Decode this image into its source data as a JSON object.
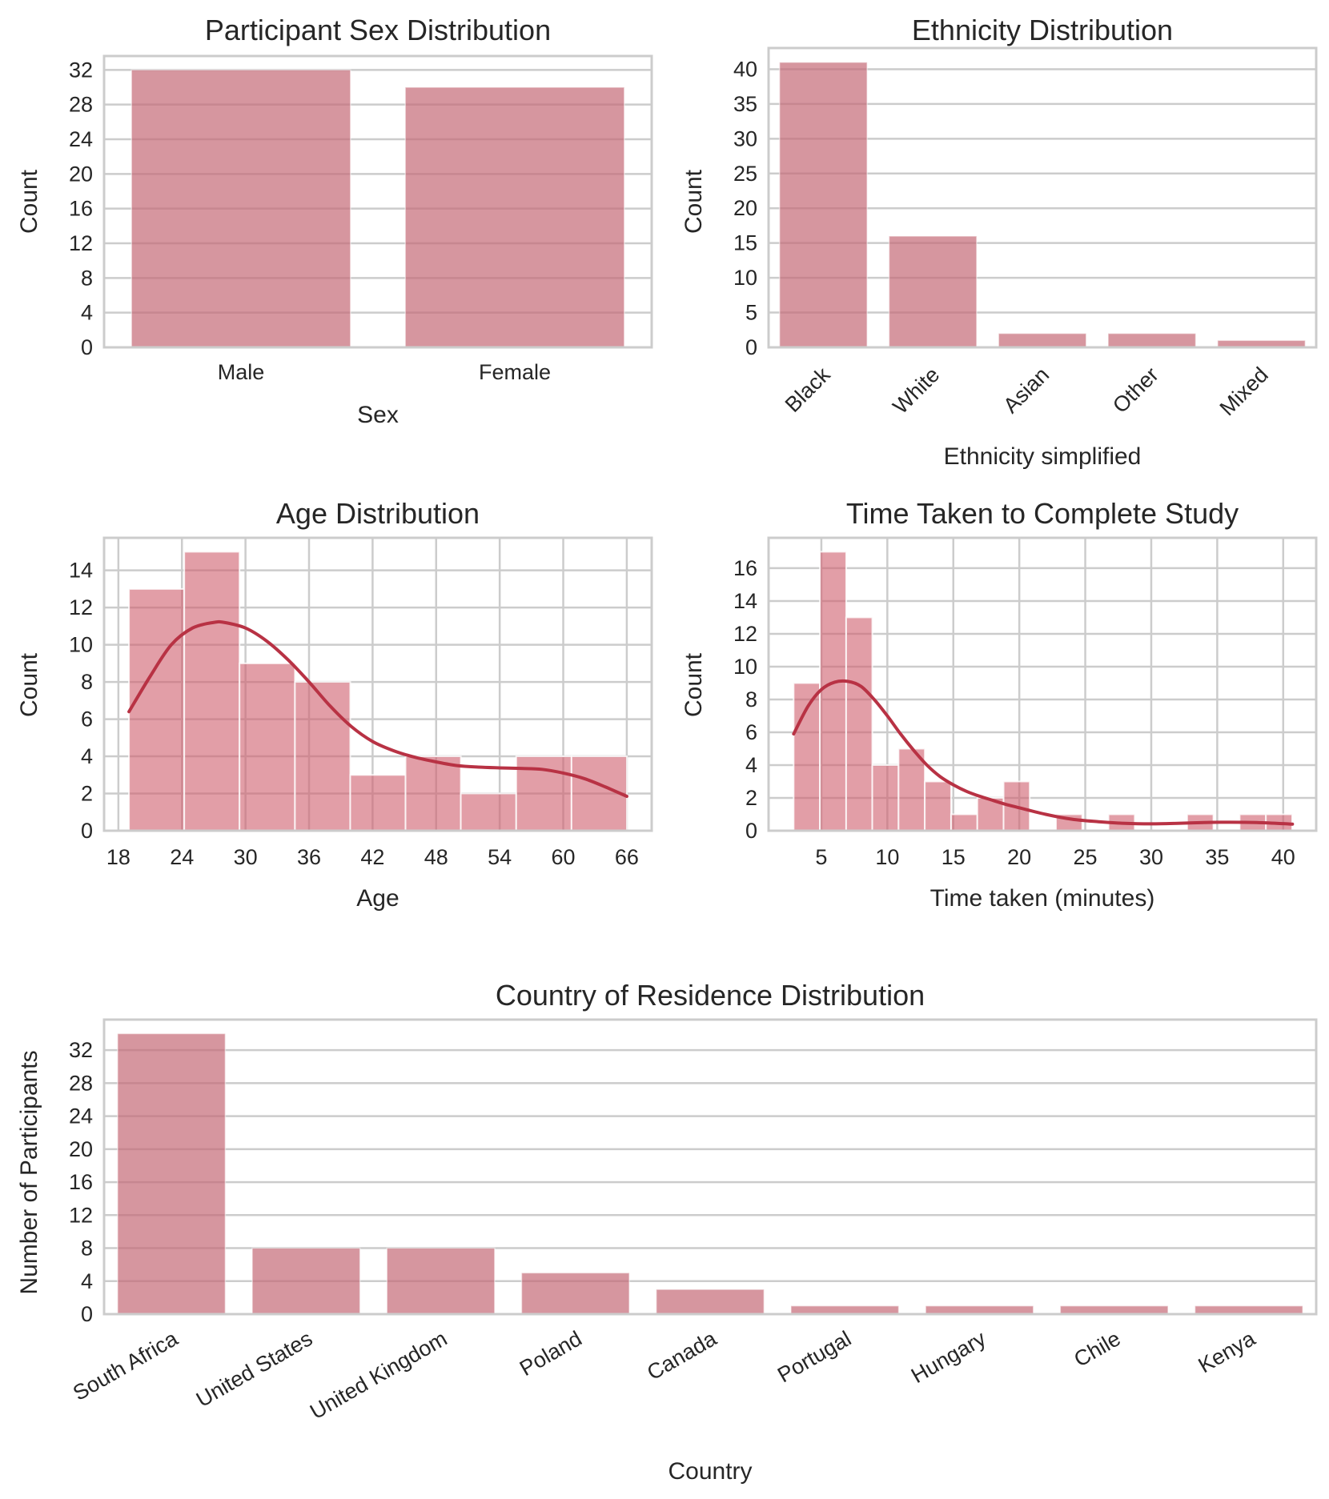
{
  "colors": {
    "bar_fill": "#c46a76",
    "bar_fill_hist": "#cf5d6c",
    "kde_line": "#b83244",
    "grid": "#cccccc",
    "text": "#262626"
  },
  "chart_data": [
    {
      "id": "sex",
      "type": "bar",
      "title": "Participant Sex Distribution",
      "xlabel": "Sex",
      "ylabel": "Count",
      "categories": [
        "Male",
        "Female"
      ],
      "values": [
        32,
        30
      ],
      "ylim": [
        0,
        33.6
      ],
      "yticks": [
        0,
        4,
        8,
        12,
        16,
        20,
        24,
        28,
        32
      ],
      "grid": "y",
      "xtick_rotation": 0
    },
    {
      "id": "ethnicity",
      "type": "bar",
      "title": "Ethnicity Distribution",
      "xlabel": "Ethnicity simplified",
      "ylabel": "Count",
      "categories": [
        "Black",
        "White",
        "Asian",
        "Other",
        "Mixed"
      ],
      "values": [
        41,
        16,
        2,
        2,
        1
      ],
      "ylim": [
        0,
        43.05
      ],
      "yticks": [
        0,
        5,
        10,
        15,
        20,
        25,
        30,
        35,
        40
      ],
      "grid": "y",
      "xtick_rotation": -45
    },
    {
      "id": "age",
      "type": "histogram",
      "title": "Age Distribution",
      "xlabel": "Age",
      "ylabel": "Count",
      "bin_edges": [
        19,
        24.22,
        29.44,
        34.67,
        39.89,
        45.11,
        50.33,
        55.56,
        60.78,
        66
      ],
      "values": [
        13,
        15,
        9,
        8,
        3,
        4,
        2,
        4,
        4
      ],
      "kde": {
        "x": [
          19,
          21,
          23,
          25,
          27,
          28,
          30,
          32,
          34,
          36,
          38,
          40,
          42,
          44,
          46,
          48,
          50,
          52,
          54,
          56,
          58,
          60,
          62,
          64,
          66
        ],
        "y": [
          6.4,
          8.3,
          10.0,
          10.9,
          11.2,
          11.2,
          10.9,
          10.2,
          9.2,
          8.0,
          6.7,
          5.6,
          4.8,
          4.3,
          3.95,
          3.7,
          3.5,
          3.42,
          3.38,
          3.35,
          3.3,
          3.1,
          2.8,
          2.35,
          1.85
        ]
      },
      "xlim": [
        16.65,
        68.35
      ],
      "ylim": [
        0,
        15.75
      ],
      "xticks": [
        18,
        24,
        30,
        36,
        42,
        48,
        54,
        60,
        66
      ],
      "yticks": [
        0,
        2,
        4,
        6,
        8,
        10,
        12,
        14
      ],
      "grid": "both"
    },
    {
      "id": "time",
      "type": "histogram",
      "title": "Time Taken to Complete Study",
      "xlabel": "Time taken (minutes)",
      "ylabel": "Count",
      "bin_edges": [
        2.9,
        4.89,
        6.88,
        8.86,
        10.85,
        12.84,
        14.83,
        16.82,
        18.81,
        20.79,
        22.78,
        24.77,
        26.76,
        28.75,
        30.74,
        32.72,
        34.71,
        36.7,
        38.69,
        40.68
      ],
      "values": [
        9,
        17,
        13,
        4,
        5,
        3,
        1,
        2,
        3,
        0,
        1,
        0,
        1,
        0,
        0,
        1,
        0,
        1,
        1
      ],
      "kde": {
        "x": [
          2.9,
          4,
          5,
          6,
          7,
          8,
          9,
          10,
          11,
          12,
          13,
          14,
          15,
          16,
          17,
          18,
          19,
          20,
          22,
          24,
          26,
          28,
          30,
          32,
          34,
          36,
          38,
          40,
          40.7
        ],
        "y": [
          5.9,
          7.6,
          8.6,
          9.05,
          9.1,
          8.8,
          8.0,
          7.0,
          5.9,
          4.9,
          4.0,
          3.3,
          2.8,
          2.4,
          2.1,
          1.85,
          1.6,
          1.4,
          1.0,
          0.7,
          0.55,
          0.45,
          0.42,
          0.45,
          0.5,
          0.52,
          0.5,
          0.43,
          0.4
        ]
      },
      "xlim": [
        1.0,
        42.5
      ],
      "ylim": [
        0,
        17.85
      ],
      "xticks": [
        5,
        10,
        15,
        20,
        25,
        30,
        35,
        40
      ],
      "yticks": [
        0,
        2,
        4,
        6,
        8,
        10,
        12,
        14,
        16
      ],
      "grid": "both"
    },
    {
      "id": "country",
      "type": "bar",
      "title": "Country of Residence Distribution",
      "xlabel": "Country",
      "ylabel": "Number of Participants",
      "categories": [
        "South Africa",
        "United States",
        "United Kingdom",
        "Poland",
        "Canada",
        "Portugal",
        "Hungary",
        "Chile",
        "Kenya"
      ],
      "values": [
        34,
        8,
        8,
        5,
        3,
        1,
        1,
        1,
        1
      ],
      "ylim": [
        0,
        35.7
      ],
      "yticks": [
        0,
        4,
        8,
        12,
        16,
        20,
        24,
        28,
        32
      ],
      "grid": "y",
      "xtick_rotation": -30
    }
  ]
}
